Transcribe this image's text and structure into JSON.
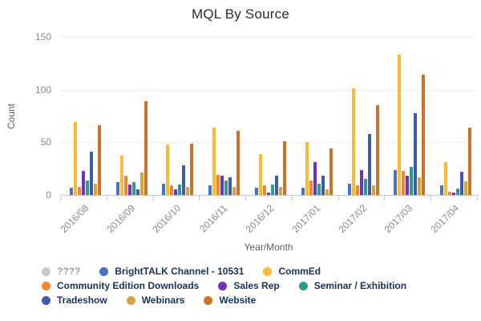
{
  "title": "MQL By Source",
  "chart_data": {
    "type": "bar",
    "title": "MQL By Source",
    "xlabel": "Year/Month",
    "ylabel": "Count",
    "ylim": [
      0,
      150
    ],
    "y_ticks": [
      0,
      50,
      100,
      150
    ],
    "grid": true,
    "legend_position": "bottom",
    "categories": [
      "2016/08",
      "2016/09",
      "2016/10",
      "2016/11",
      "2016/12",
      "2017/01",
      "2017/02",
      "2017/03",
      "2017/04"
    ],
    "series": [
      {
        "name": "????",
        "color": "#c9c9c9",
        "muted": true,
        "values": [
          0,
          0,
          0,
          0,
          0,
          0,
          0,
          0,
          0
        ]
      },
      {
        "name": "BrightTALK Channel - 10531",
        "color": "#4472c4",
        "values": [
          7,
          12,
          11,
          9,
          7,
          7,
          11,
          24,
          9
        ]
      },
      {
        "name": "CommEd",
        "color": "#fdba31",
        "values": [
          69,
          37,
          48,
          64,
          39,
          50,
          101,
          133,
          31
        ]
      },
      {
        "name": "Community Edition Downloads",
        "color": "#f5862c",
        "values": [
          8,
          18,
          9,
          19,
          9,
          14,
          9,
          23,
          3
        ]
      },
      {
        "name": "Sales Rep",
        "color": "#7133bd",
        "values": [
          23,
          10,
          5,
          18,
          2,
          31,
          24,
          18,
          2
        ]
      },
      {
        "name": "Seminar / Exhibition",
        "color": "#2a9a92",
        "values": [
          14,
          12,
          10,
          14,
          10,
          11,
          15,
          27,
          6
        ]
      },
      {
        "name": "Tradeshow",
        "color": "#3e5ba9",
        "values": [
          41,
          5,
          28,
          17,
          18,
          18,
          58,
          78,
          22
        ]
      },
      {
        "name": "Webinars",
        "color": "#d3a53a",
        "values": [
          11,
          21,
          8,
          8,
          8,
          5,
          9,
          17,
          13
        ]
      },
      {
        "name": "Website",
        "color": "#cf7129",
        "values": [
          66,
          89,
          49,
          61,
          51,
          44,
          85,
          114,
          64
        ]
      }
    ]
  },
  "legend": {
    "rows": [
      [
        0,
        1,
        2
      ],
      [
        3,
        4,
        5
      ],
      [
        6,
        7,
        8
      ]
    ],
    "text_color": "#16325c",
    "muted_text_color": "#9e9e9e"
  },
  "colors": {
    "background": "#ffffff",
    "axis_line": "#bcc7e9",
    "grid_line": "#ececec",
    "tick_text": "#8a8a8a",
    "axis_title_text": "#5f5f5f",
    "title_text": "#2b2b2b"
  }
}
